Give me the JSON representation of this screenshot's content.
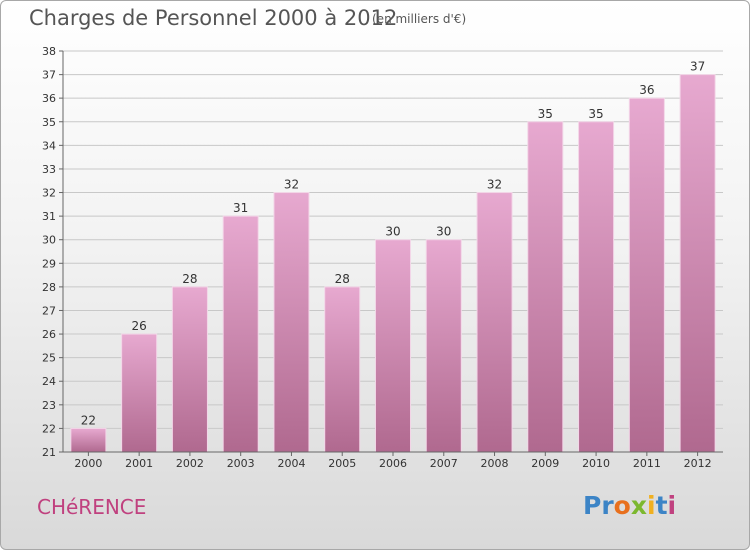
{
  "header": {
    "title": "Charges de Personnel 2000 à 2012",
    "subtitle": "(en milliers d'€)"
  },
  "commune": "CHéRENCE",
  "logo": {
    "letters": [
      {
        "ch": "P",
        "color": "#3c84c6"
      },
      {
        "ch": "r",
        "color": "#3c84c6"
      },
      {
        "ch": "o",
        "color": "#e8701e"
      },
      {
        "ch": "x",
        "color": "#7cb82f"
      },
      {
        "ch": "i",
        "color": "#f0b020"
      },
      {
        "ch": "t",
        "color": "#3c84c6"
      },
      {
        "ch": "i",
        "color": "#c0417f"
      }
    ]
  },
  "colors": {
    "bar_top": "#e7a9d0",
    "bar_bottom": "#b0698f",
    "grid": "#c8c8c8",
    "axis": "#666666",
    "label": "#333333"
  },
  "chart_data": {
    "type": "bar",
    "title": "Charges de Personnel 2000 à 2012",
    "subtitle": "(en milliers d'€)",
    "categories": [
      "2000",
      "2001",
      "2002",
      "2003",
      "2004",
      "2005",
      "2006",
      "2007",
      "2008",
      "2009",
      "2010",
      "2011",
      "2012"
    ],
    "values": [
      22,
      26,
      28,
      31,
      32,
      28,
      30,
      30,
      32,
      35,
      35,
      36,
      37
    ],
    "ylim": [
      21,
      38
    ],
    "yticks": [
      21,
      22,
      23,
      24,
      25,
      26,
      27,
      28,
      29,
      30,
      31,
      32,
      33,
      34,
      35,
      36,
      37,
      38
    ],
    "grid": true,
    "data_labels": true
  }
}
